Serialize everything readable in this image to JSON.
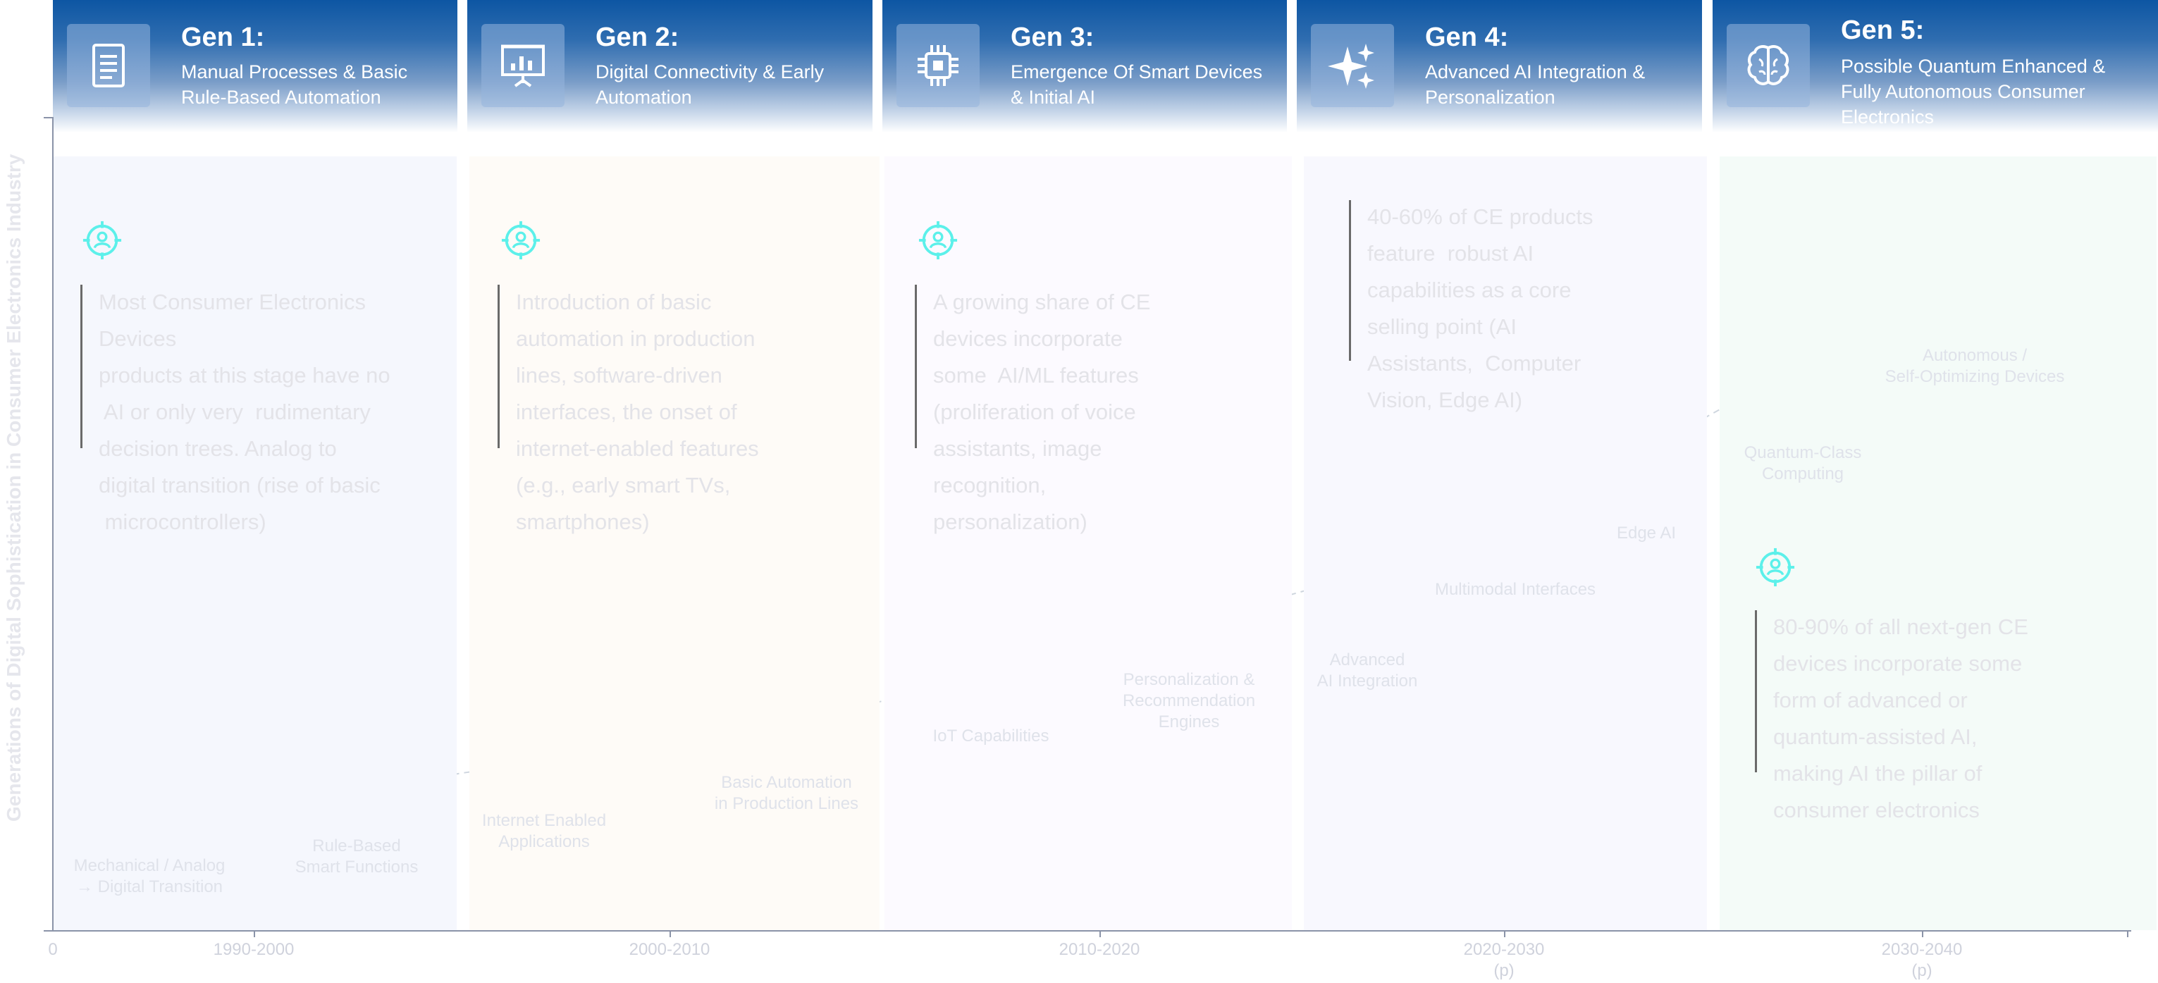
{
  "y_axis_title": "Generations of Digital Sophistication in Consumer Electronics Industry",
  "axis": {
    "origin_label": "0",
    "ticks": [
      {
        "label": "1990-2000",
        "sub": ""
      },
      {
        "label": "2000-2010",
        "sub": ""
      },
      {
        "label": "2010-2020",
        "sub": ""
      },
      {
        "label": "2020-2030",
        "sub": "(p)"
      },
      {
        "label": "2030-2040",
        "sub": "(p)"
      }
    ]
  },
  "generations": [
    {
      "title": "Gen 1:",
      "subtitle": "Manual Processes & Basic Rule-Based Automation",
      "icon": "document-icon",
      "tint": "#f5f7fd"
    },
    {
      "title": "Gen 2:",
      "subtitle": "Digital Connectivity & Early Automation",
      "icon": "presentation-icon",
      "tint": "#fefbf7"
    },
    {
      "title": "Gen 3:",
      "subtitle": "Emergence Of Smart Devices & Initial AI",
      "icon": "chip-icon",
      "tint": "#fcfaff"
    },
    {
      "title": "Gen 4:",
      "subtitle": "Advanced AI Integration & Personalization",
      "icon": "sparkle-icon",
      "tint": "#f8f8fe"
    },
    {
      "title": "Gen 5:",
      "subtitle": "Possible Quantum Enhanced & Fully Autonomous Consumer Electronics",
      "icon": "brain-icon",
      "tint": "#f4fbf8"
    }
  ],
  "notes": [
    {
      "lines": [
        "Most Consumer Electronics",
        "Devices",
        "products at this stage have no",
        " AI or only very  rudimentary",
        "decision trees. Analog to",
        "digital transition (rise of basic",
        " microcontrollers)"
      ]
    },
    {
      "lines": [
        "Introduction of basic",
        "automation in production",
        "lines, software-driven",
        "interfaces, the onset of",
        "internet-enabled features",
        "(e.g., early smart TVs,",
        "smartphones)"
      ]
    },
    {
      "lines": [
        "A growing share of CE",
        "devices incorporate",
        "some  AI/ML features",
        "(proliferation of voice",
        "assistants, image",
        "recognition,",
        "personalization)"
      ]
    },
    {
      "lines": [
        "40-60% of CE products",
        "feature  robust AI",
        "capabilities as a core",
        "selling point (AI",
        "Assistants,  Computer",
        "Vision, Edge AI)"
      ]
    },
    {
      "lines": [
        "80-90% of all next-gen CE",
        "devices incorporate some",
        "form of advanced or",
        "quantum-assisted AI,",
        "making AI the pillar of",
        "consumer electronics"
      ]
    }
  ],
  "milestones": [
    {
      "label": [
        "Mechanical / Analog",
        "→ Digital Transition"
      ],
      "level": 1
    },
    {
      "label": [
        "Rule-Based",
        "Smart Functions"
      ],
      "level": 2
    },
    {
      "label": [
        "Internet Enabled",
        "Applications"
      ],
      "level": 3
    },
    {
      "label": [
        "Basic Automation",
        "in Production Lines"
      ],
      "level": 4
    },
    {
      "label": [
        "IoT Capabilities"
      ],
      "level": 5
    },
    {
      "label": [
        "Personalization &",
        "Recommendation",
        "Engines"
      ],
      "level": 6
    },
    {
      "label": [
        "Advanced",
        "AI Integration"
      ],
      "level": 7
    },
    {
      "label": [
        "Multimodal Interfaces"
      ],
      "level": 8
    },
    {
      "label": [
        "Edge AI"
      ],
      "level": 9
    },
    {
      "label": [
        "Quantum-Class",
        "Computing"
      ],
      "level": 10
    },
    {
      "label": [
        "Autonomous /",
        "Self-Optimizing Devices"
      ],
      "level": 11
    }
  ],
  "colors": {
    "header_top": "#0d56a3",
    "bubble_top": "#7ef0ea",
    "bubble_bottom": "#c7e1e6",
    "target_icon": "#5cf0ea",
    "note_text": "#e3e3e8"
  }
}
